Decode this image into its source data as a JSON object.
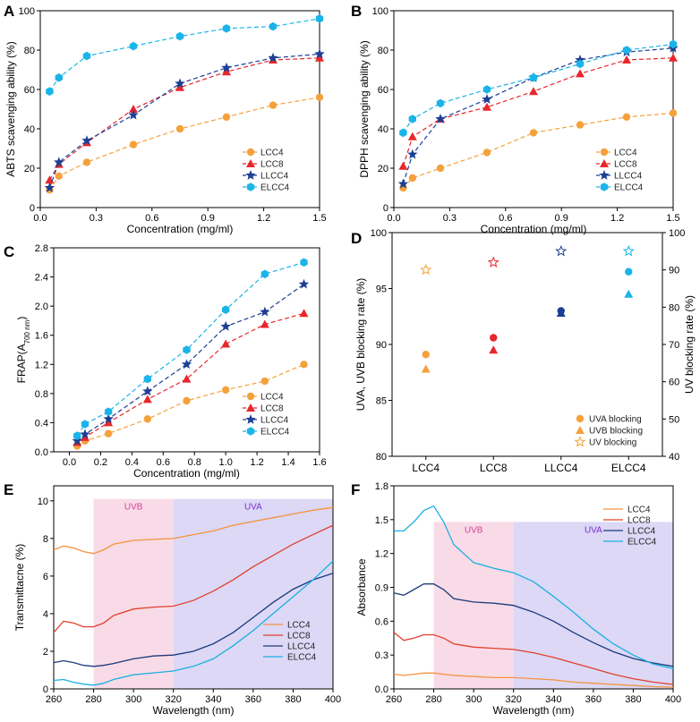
{
  "chart_data": [
    {
      "panel": "A",
      "type": "line",
      "xlabel": "Concentration (mg/ml)",
      "ylabel": "ABTS scavenging ability (%)",
      "xlim": [
        0,
        1.5
      ],
      "ylim": [
        0,
        100
      ],
      "xticks": [
        "0.0",
        "0.3",
        "0.6",
        "0.9",
        "1.2",
        "1.5"
      ],
      "yticks": [
        "0",
        "20",
        "40",
        "60",
        "80",
        "100"
      ],
      "legend_position": "bottom-right",
      "x": [
        0.05,
        0.1,
        0.25,
        0.5,
        0.75,
        1.0,
        1.25,
        1.5
      ],
      "series": [
        {
          "name": "LCC4",
          "color": "#f5a13b",
          "marker": "circle",
          "values": [
            9,
            16,
            23,
            32,
            40,
            46,
            52,
            56
          ]
        },
        {
          "name": "LCC8",
          "color": "#e8262b",
          "marker": "triangle",
          "values": [
            14,
            22,
            33,
            50,
            61,
            69,
            75,
            76
          ]
        },
        {
          "name": "LLCC4",
          "color": "#1c3f94",
          "marker": "star",
          "values": [
            10,
            23,
            34,
            47,
            63,
            71,
            76,
            78
          ]
        },
        {
          "name": "ELCC4",
          "color": "#1ab4e8",
          "marker": "hexagon",
          "values": [
            59,
            66,
            77,
            82,
            87,
            91,
            92,
            96
          ]
        }
      ]
    },
    {
      "panel": "B",
      "type": "line",
      "xlabel": "Concentration (mg/ml)",
      "ylabel": "DPPH scavenging ability (%)",
      "xlim": [
        0,
        1.5
      ],
      "ylim": [
        0,
        100
      ],
      "xticks": [
        "0.0",
        "0.3",
        "0.6",
        "0.9",
        "1.2",
        "1.5"
      ],
      "yticks": [
        "0",
        "20",
        "40",
        "60",
        "80",
        "100"
      ],
      "legend_position": "bottom-right",
      "x": [
        0.05,
        0.1,
        0.25,
        0.5,
        0.75,
        1.0,
        1.25,
        1.5
      ],
      "series": [
        {
          "name": "LCC4",
          "color": "#f5a13b",
          "marker": "circle",
          "values": [
            10,
            15,
            20,
            28,
            38,
            42,
            46,
            48
          ]
        },
        {
          "name": "LCC8",
          "color": "#e8262b",
          "marker": "triangle",
          "values": [
            21,
            36,
            45,
            51,
            59,
            68,
            75,
            76
          ]
        },
        {
          "name": "LLCC4",
          "color": "#1c3f94",
          "marker": "star",
          "values": [
            12,
            27,
            45,
            55,
            66,
            75,
            79,
            81
          ]
        },
        {
          "name": "ELCC4",
          "color": "#1ab4e8",
          "marker": "hexagon",
          "values": [
            38,
            45,
            53,
            60,
            66,
            73,
            80,
            83
          ]
        }
      ]
    },
    {
      "panel": "C",
      "type": "line",
      "xlabel": "Concentration (mg/ml)",
      "ylabel": "FRAP(A",
      "ylabel_sub": "700 nm",
      "ylabel_end": ")",
      "xlim": [
        -0.1,
        1.6
      ],
      "ylim": [
        0,
        2.8
      ],
      "xticks": [
        "0.0",
        "0.2",
        "0.4",
        "0.6",
        "0.8",
        "1.0",
        "1.2",
        "1.4",
        "1.6"
      ],
      "yticks": [
        "0.0",
        "0.4",
        "0.8",
        "1.2",
        "1.6",
        "2.0",
        "2.4",
        "2.8"
      ],
      "legend_position": "bottom-right",
      "x": [
        0.05,
        0.1,
        0.25,
        0.5,
        0.75,
        1.0,
        1.25,
        1.5
      ],
      "series": [
        {
          "name": "LCC4",
          "color": "#f5a13b",
          "marker": "circle",
          "values": [
            0.08,
            0.15,
            0.25,
            0.45,
            0.7,
            0.85,
            0.97,
            1.2
          ]
        },
        {
          "name": "LCC8",
          "color": "#e8262b",
          "marker": "triangle",
          "values": [
            0.13,
            0.2,
            0.4,
            0.72,
            1.0,
            1.48,
            1.75,
            1.9
          ]
        },
        {
          "name": "LLCC4",
          "color": "#1c3f94",
          "marker": "star",
          "values": [
            0.15,
            0.24,
            0.45,
            0.83,
            1.2,
            1.72,
            1.92,
            2.3
          ]
        },
        {
          "name": "ELCC4",
          "color": "#1ab4e8",
          "marker": "hexagon",
          "values": [
            0.22,
            0.38,
            0.55,
            1.0,
            1.4,
            1.95,
            2.44,
            2.6
          ]
        }
      ]
    },
    {
      "panel": "D",
      "type": "scatter",
      "xlabel": "",
      "ylabel": "UVA, UVB blocking rate (%)",
      "ylabel_right": "UV blocking rate (%)",
      "categories": [
        "LCC4",
        "LCC8",
        "LLCC4",
        "ELCC4"
      ],
      "ylim": [
        80,
        100
      ],
      "ylim_right": [
        40,
        100
      ],
      "yticks": [
        "80",
        "85",
        "90",
        "95",
        "100"
      ],
      "yticks_right": [
        "40",
        "50",
        "60",
        "70",
        "80",
        "90",
        "100"
      ],
      "legend_position": "bottom-right",
      "series": [
        {
          "name": "UVA blocking",
          "marker": "circle",
          "axis": "left",
          "values": [
            89.1,
            90.6,
            93.0,
            96.5
          ]
        },
        {
          "name": "UVB blocking",
          "marker": "triangle",
          "axis": "left",
          "values": [
            87.8,
            89.5,
            92.8,
            94.5
          ]
        },
        {
          "name": "UV blocking",
          "marker": "star-open",
          "axis": "right",
          "values": [
            90,
            92,
            95,
            95
          ]
        }
      ],
      "category_colors": [
        "#f5a13b",
        "#e8262b",
        "#1c3f94",
        "#1ab4e8"
      ]
    },
    {
      "panel": "E",
      "type": "line",
      "xlabel": "Wavelength (nm)",
      "ylabel": "Transmittacne (%)",
      "xlim": [
        260,
        400
      ],
      "ylim": [
        0,
        10.8
      ],
      "xticks": [
        "260",
        "280",
        "300",
        "320",
        "340",
        "360",
        "380",
        "400"
      ],
      "yticks": [
        "0",
        "2",
        "4",
        "6",
        "8",
        "10"
      ],
      "legend_position": "bottom-right",
      "regions": [
        {
          "label": "UVB",
          "from": 280,
          "to": 320,
          "top": 10.1,
          "color": "#f9dbe7",
          "label_color": "#d4409a"
        },
        {
          "label": "UVA",
          "from": 320,
          "to": 400,
          "top": 10.1,
          "color": "#dcd8f6",
          "label_color": "#7a2fc8"
        }
      ],
      "x": [
        260,
        265,
        270,
        275,
        280,
        285,
        290,
        300,
        310,
        320,
        330,
        340,
        350,
        360,
        370,
        380,
        390,
        400
      ],
      "series": [
        {
          "name": "LCC4",
          "color": "#f5923e",
          "values": [
            7.4,
            7.6,
            7.5,
            7.3,
            7.2,
            7.4,
            7.7,
            7.9,
            7.95,
            8.0,
            8.2,
            8.4,
            8.7,
            8.9,
            9.1,
            9.3,
            9.5,
            9.65
          ]
        },
        {
          "name": "LCC8",
          "color": "#e0402d",
          "values": [
            3.0,
            3.6,
            3.5,
            3.3,
            3.3,
            3.5,
            3.9,
            4.25,
            4.35,
            4.4,
            4.7,
            5.2,
            5.8,
            6.5,
            7.1,
            7.7,
            8.2,
            8.7
          ]
        },
        {
          "name": "LLCC4",
          "color": "#1c3a7a",
          "values": [
            1.4,
            1.5,
            1.4,
            1.25,
            1.2,
            1.25,
            1.35,
            1.6,
            1.75,
            1.8,
            2.0,
            2.4,
            3.0,
            3.8,
            4.6,
            5.3,
            5.8,
            6.15
          ]
        },
        {
          "name": "ELCC4",
          "color": "#1ab0e0",
          "values": [
            0.45,
            0.5,
            0.35,
            0.25,
            0.2,
            0.3,
            0.5,
            0.75,
            0.85,
            0.95,
            1.2,
            1.6,
            2.3,
            3.1,
            4.0,
            4.9,
            5.8,
            6.8
          ]
        }
      ]
    },
    {
      "panel": "F",
      "type": "line",
      "xlabel": "Wavelength (nm)",
      "ylabel": "Absorbance",
      "xlim": [
        260,
        400
      ],
      "ylim": [
        0,
        1.8
      ],
      "xticks": [
        "260",
        "280",
        "300",
        "320",
        "340",
        "360",
        "380",
        "400"
      ],
      "yticks": [
        "0.0",
        "0.3",
        "0.6",
        "0.9",
        "1.2",
        "1.5",
        "1.8"
      ],
      "legend_position": "top-right",
      "regions": [
        {
          "label": "UVB",
          "from": 280,
          "to": 320,
          "top": 1.48,
          "color": "#f9dbe7",
          "label_color": "#d4409a"
        },
        {
          "label": "UVA",
          "from": 320,
          "to": 400,
          "top": 1.48,
          "color": "#dcd8f6",
          "label_color": "#7a2fc8"
        }
      ],
      "x": [
        260,
        265,
        270,
        275,
        280,
        285,
        290,
        300,
        310,
        320,
        330,
        340,
        350,
        360,
        370,
        380,
        390,
        400
      ],
      "series": [
        {
          "name": "LCC4",
          "color": "#f5923e",
          "values": [
            0.13,
            0.12,
            0.13,
            0.14,
            0.14,
            0.13,
            0.12,
            0.11,
            0.1,
            0.1,
            0.09,
            0.08,
            0.06,
            0.05,
            0.04,
            0.03,
            0.02,
            0.015
          ]
        },
        {
          "name": "LCC8",
          "color": "#e0402d",
          "values": [
            0.5,
            0.43,
            0.45,
            0.48,
            0.48,
            0.45,
            0.4,
            0.37,
            0.36,
            0.35,
            0.32,
            0.28,
            0.23,
            0.18,
            0.13,
            0.09,
            0.06,
            0.04
          ]
        },
        {
          "name": "LLCC4",
          "color": "#1c3a7a",
          "values": [
            0.85,
            0.83,
            0.88,
            0.93,
            0.93,
            0.88,
            0.8,
            0.77,
            0.76,
            0.74,
            0.68,
            0.6,
            0.5,
            0.41,
            0.33,
            0.27,
            0.23,
            0.2
          ]
        },
        {
          "name": "ELCC4",
          "color": "#1ab0e0",
          "values": [
            1.4,
            1.4,
            1.48,
            1.58,
            1.62,
            1.48,
            1.28,
            1.12,
            1.07,
            1.03,
            0.95,
            0.82,
            0.68,
            0.53,
            0.4,
            0.3,
            0.22,
            0.18
          ]
        }
      ]
    }
  ]
}
